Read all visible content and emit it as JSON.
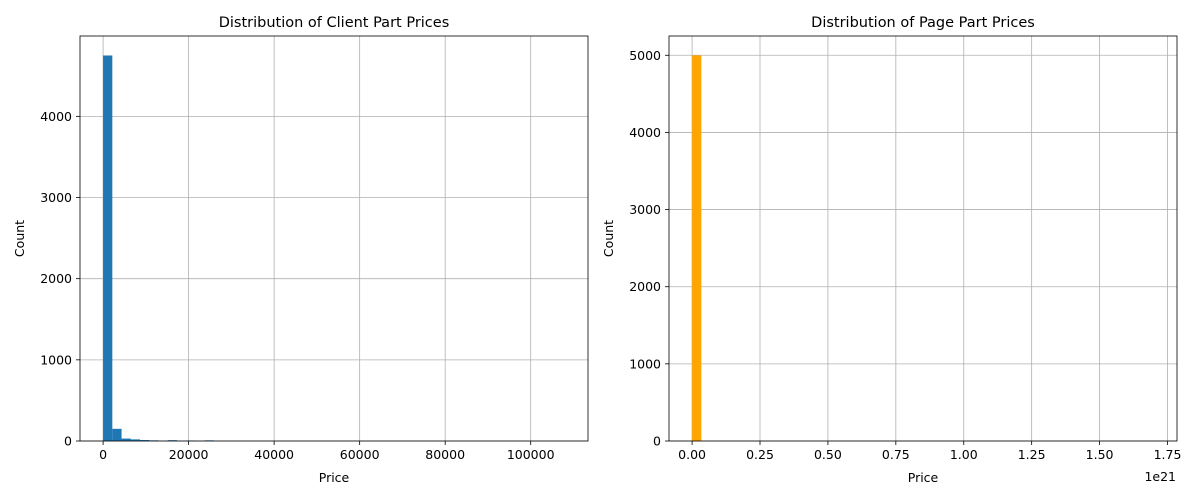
{
  "chart_data": [
    {
      "type": "bar",
      "title": "Distribution of Client Part Prices",
      "xlabel": "Price",
      "ylabel": "Count",
      "xlim": [
        -5400,
        113400
      ],
      "ylim": [
        0,
        4990
      ],
      "xticks": [
        0,
        20000,
        40000,
        60000,
        80000,
        100000
      ],
      "xtick_labels": [
        "0",
        "20000",
        "40000",
        "60000",
        "80000",
        "100000"
      ],
      "yticks": [
        0,
        1000,
        2000,
        3000,
        4000
      ],
      "ytick_labels": [
        "0",
        "1000",
        "2000",
        "3000",
        "4000"
      ],
      "x_offset_label": "",
      "grid": true,
      "color": "#1f77b4",
      "bins": [
        {
          "x0": 0,
          "x1": 2160,
          "count": 4750
        },
        {
          "x0": 2160,
          "x1": 4320,
          "count": 150
        },
        {
          "x0": 4320,
          "x1": 6480,
          "count": 30
        },
        {
          "x0": 6480,
          "x1": 8640,
          "count": 20
        },
        {
          "x0": 8640,
          "x1": 10800,
          "count": 12
        },
        {
          "x0": 10800,
          "x1": 12960,
          "count": 8
        },
        {
          "x0": 15120,
          "x1": 17280,
          "count": 10
        },
        {
          "x0": 19440,
          "x1": 21600,
          "count": 6
        },
        {
          "x0": 23760,
          "x1": 25920,
          "count": 8
        }
      ]
    },
    {
      "type": "bar",
      "title": "Distribution of Page Part Prices",
      "xlabel": "Price",
      "ylabel": "Count",
      "xlim": [
        -0.085,
        1.785
      ],
      "ylim": [
        0,
        5250
      ],
      "xticks": [
        0,
        0.25,
        0.5,
        0.75,
        1.0,
        1.25,
        1.5,
        1.75
      ],
      "xtick_labels": [
        "0.00",
        "0.25",
        "0.50",
        "0.75",
        "1.00",
        "1.25",
        "1.50",
        "1.75"
      ],
      "yticks": [
        0,
        1000,
        2000,
        3000,
        4000,
        5000
      ],
      "ytick_labels": [
        "0",
        "1000",
        "2000",
        "3000",
        "4000",
        "5000"
      ],
      "x_offset_label": "1e21",
      "grid": true,
      "color": "#ffa500",
      "bins": [
        {
          "x0": 0,
          "x1": 0.034,
          "count": 4999
        }
      ]
    }
  ]
}
